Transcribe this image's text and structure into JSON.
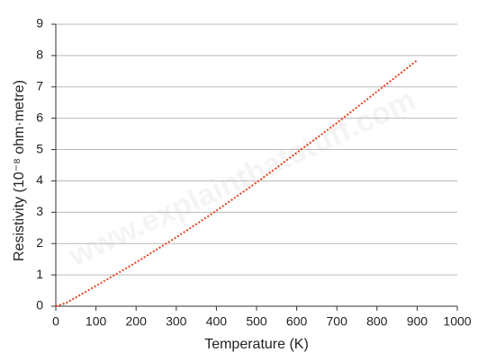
{
  "chart_data": {
    "type": "line",
    "xlabel": "Temperature (K)",
    "ylabel": "Resistivity (10⁻⁸ ohm·metre)",
    "watermark": "www.explainthatstuff.com",
    "x": [
      0,
      25,
      50,
      100,
      150,
      200,
      250,
      300,
      350,
      400,
      450,
      500,
      550,
      600,
      650,
      700,
      750,
      800,
      850,
      900
    ],
    "series": [
      {
        "name": "Resistivity",
        "color": "#e8401c",
        "values": [
          0,
          0.1,
          0.28,
          0.65,
          1.02,
          1.4,
          1.8,
          2.2,
          2.62,
          3.05,
          3.5,
          3.95,
          4.42,
          4.9,
          5.37,
          5.85,
          6.35,
          6.85,
          7.35,
          7.85
        ]
      }
    ],
    "xlim": [
      0,
      1000
    ],
    "xticks": [
      0,
      100,
      200,
      300,
      400,
      500,
      600,
      700,
      800,
      900,
      1000
    ],
    "ylim": [
      0,
      9
    ],
    "yticks": [
      0,
      1,
      2,
      3,
      4,
      5,
      6,
      7,
      8,
      9
    ],
    "grid": true
  }
}
